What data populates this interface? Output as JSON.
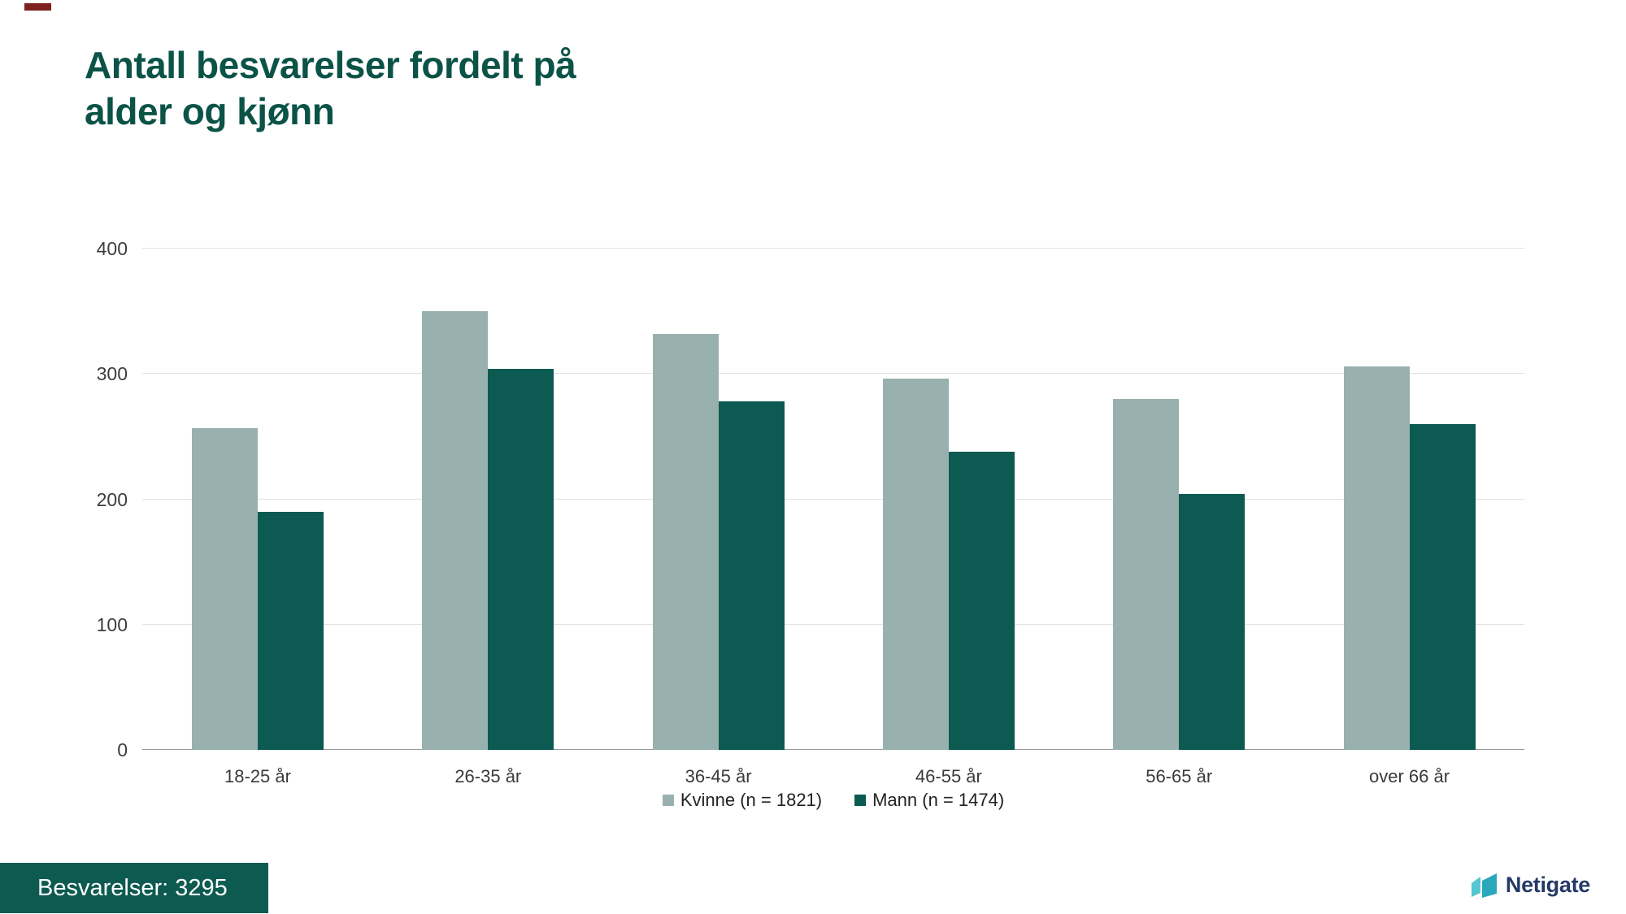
{
  "title": {
    "line1": "Antall besvarelser fordelt på",
    "line2": "alder og kjønn"
  },
  "chart_data": {
    "type": "bar",
    "title": "Antall besvarelser fordelt på alder og kjønn",
    "categories": [
      "18-25 år",
      "26-35 år",
      "36-45 år",
      "46-55 år",
      "56-65 år",
      "over 66 år"
    ],
    "series": [
      {
        "name": "Kvinne (n = 1821)",
        "values": [
          257,
          350,
          332,
          296,
          280,
          306
        ],
        "color": "#99b1ae"
      },
      {
        "name": "Mann (n = 1474)",
        "values": [
          190,
          304,
          278,
          238,
          204,
          260
        ],
        "color": "#0c5a52"
      }
    ],
    "xlabel": "",
    "ylabel": "",
    "ylim": [
      0,
      400
    ],
    "yticks": [
      0,
      100,
      200,
      300,
      400
    ],
    "grid": true,
    "legend_position": "bottom"
  },
  "footer": {
    "badge_label": "Besvarelser: 3295"
  },
  "logo": {
    "text": "Netigate"
  },
  "colors": {
    "title": "#0b5347",
    "kvinne": "#99b1ae",
    "mann": "#0c5a52",
    "badge_bg": "#0d5a50",
    "gridline": "#e2e2e2",
    "axis_line": "#9a9a9a",
    "logo_navy": "#243a66",
    "logo_icon_light": "#55c6d2",
    "logo_icon_dark": "#2aa7ba"
  }
}
